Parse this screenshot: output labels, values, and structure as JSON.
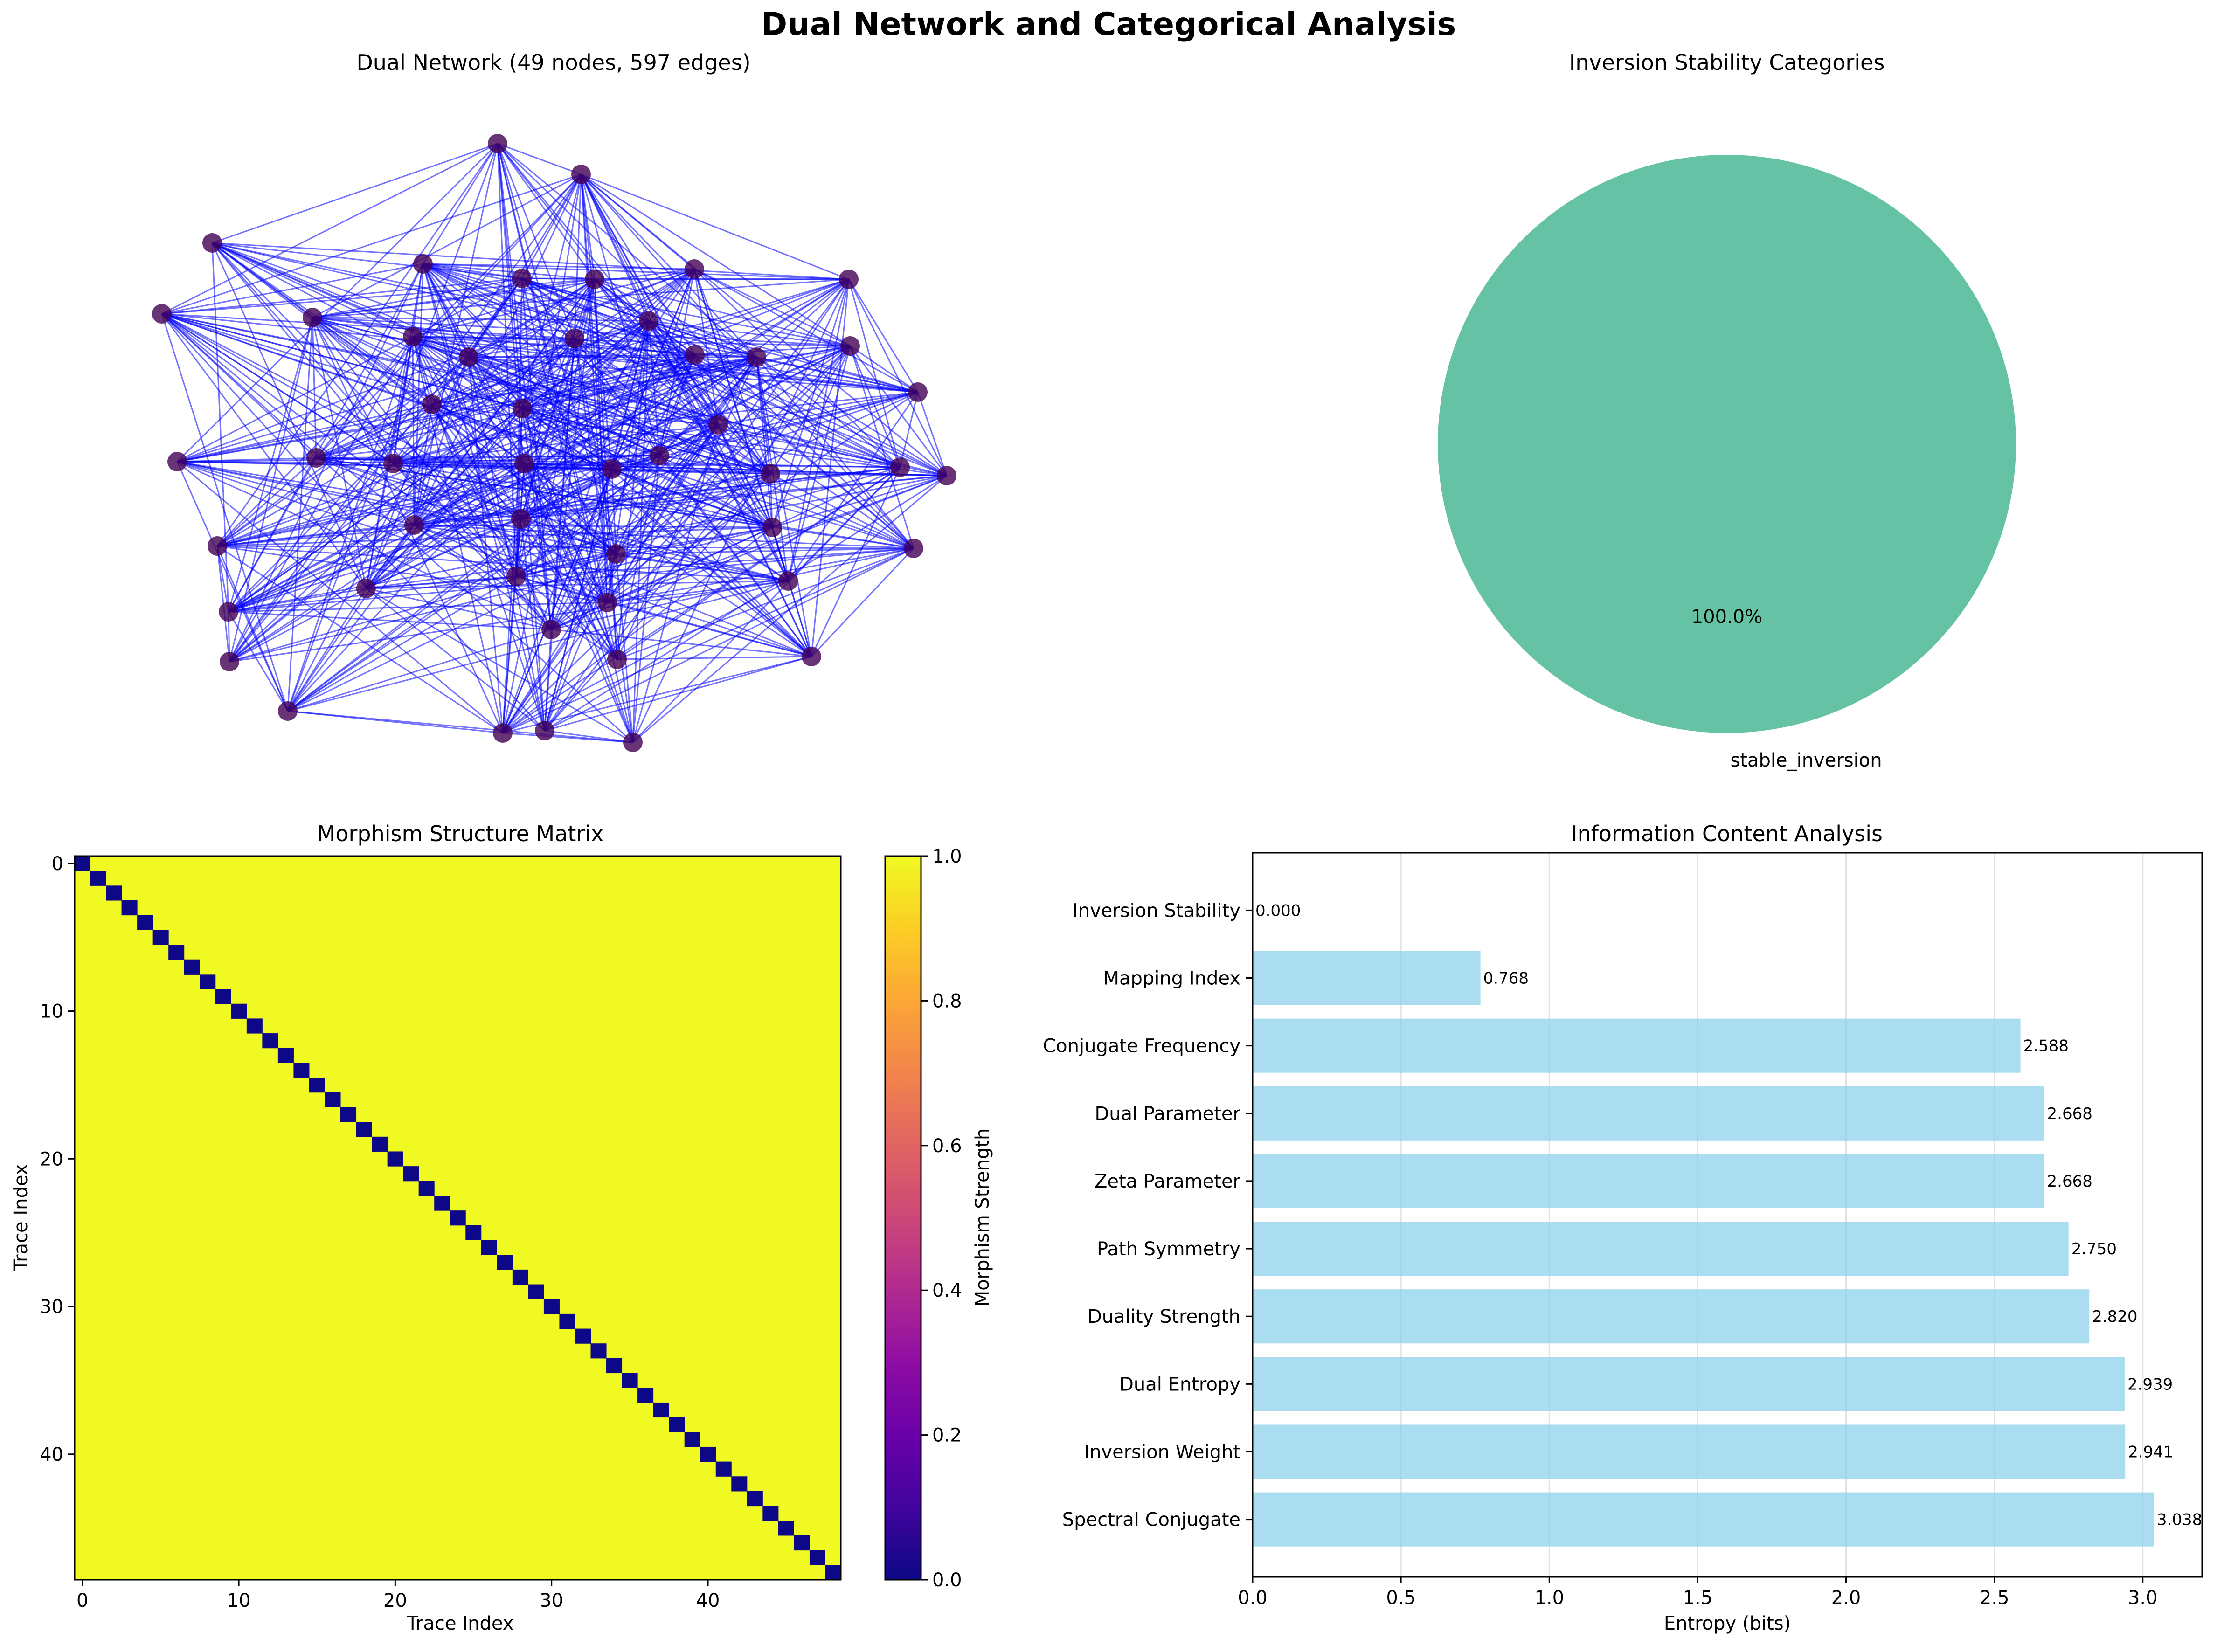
{
  "suptitle": "Dual Network and Categorical Analysis",
  "chart_data": [
    {
      "type": "network",
      "title": "Dual Network (49 nodes, 597 edges)",
      "node_count": 49,
      "edge_count": 597,
      "node_color": "#440154",
      "edge_color": "#0000ff"
    },
    {
      "type": "pie",
      "title": "Inversion Stability Categories",
      "labels": [
        "stable_inversion"
      ],
      "values": [
        100.0
      ],
      "autopct": [
        "100.0%"
      ],
      "colors": [
        "#66c2a5"
      ]
    },
    {
      "type": "heatmap",
      "title": "Morphism Structure Matrix",
      "xlabel": "Trace Index",
      "ylabel": "Trace Index",
      "size": 49,
      "pattern": "1 off-diagonal, 0 on diagonal",
      "xticks": [
        0,
        10,
        20,
        30,
        40
      ],
      "yticks": [
        0,
        10,
        20,
        30,
        40
      ],
      "colormap": "plasma",
      "colorbar": {
        "label": "Morphism Strength",
        "range": [
          0,
          1
        ],
        "ticks": [
          "0.0",
          "0.2",
          "0.4",
          "0.6",
          "0.8",
          "1.0"
        ]
      }
    },
    {
      "type": "bar",
      "orientation": "horizontal",
      "title": "Information Content Analysis",
      "xlabel": "Entropy (bits)",
      "xlim": [
        0,
        3.2
      ],
      "xticks": [
        "0.0",
        "0.5",
        "1.0",
        "1.5",
        "2.0",
        "2.5",
        "3.0"
      ],
      "grid": "x",
      "bar_color": "#87ceeb",
      "categories": [
        "Inversion Stability",
        "Mapping Index",
        "Conjugate Frequency",
        "Dual Parameter",
        "Zeta Parameter",
        "Path Symmetry",
        "Duality Strength",
        "Dual Entropy",
        "Inversion Weight",
        "Spectral Conjugate"
      ],
      "values": [
        0.0,
        0.768,
        2.588,
        2.668,
        2.668,
        2.75,
        2.82,
        2.939,
        2.941,
        3.038
      ],
      "value_labels": [
        "0.000",
        "0.768",
        "2.588",
        "2.668",
        "2.668",
        "2.750",
        "2.820",
        "2.939",
        "2.941",
        "3.038"
      ]
    }
  ]
}
